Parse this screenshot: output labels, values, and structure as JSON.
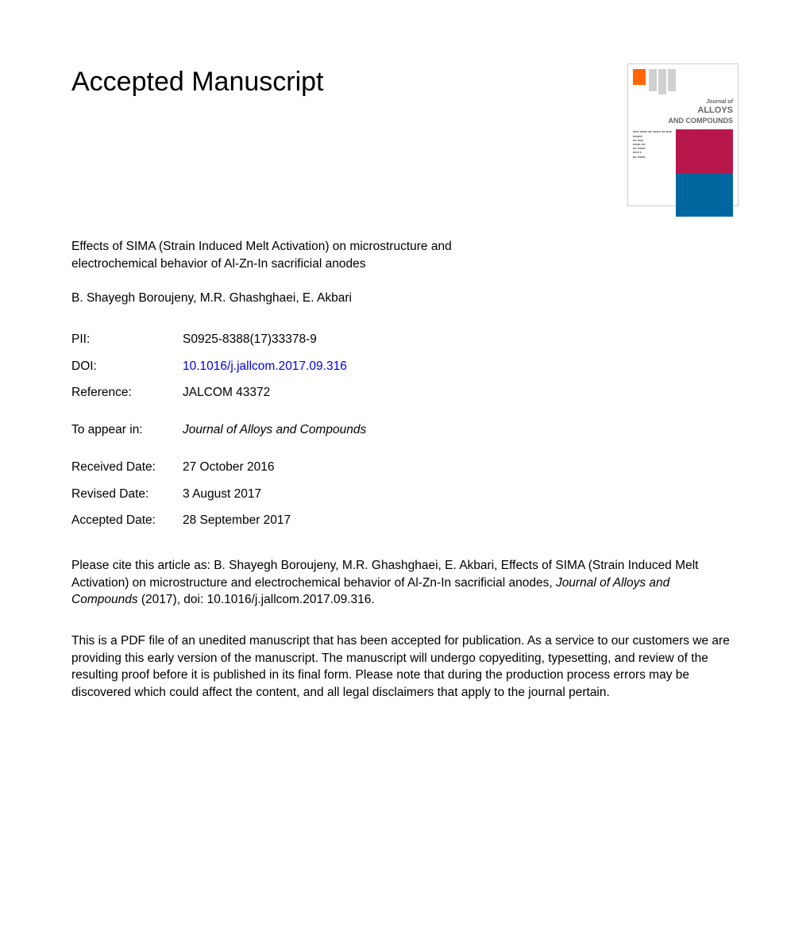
{
  "heading": "Accepted Manuscript",
  "journal_cover": {
    "title_line1": "Journal of",
    "title_line2": "ALLOYS",
    "title_line3": "AND COMPOUNDS",
    "colors": {
      "elsevier": "#ff6600",
      "bars": "#d0d0d0",
      "pink": "#b8174c",
      "blue": "#0066a0",
      "border": "#cccccc"
    }
  },
  "article": {
    "title": "Effects of SIMA (Strain Induced Melt Activation) on microstructure and electrochemical behavior of Al-Zn-In sacrificial anodes",
    "authors": "B. Shayegh Boroujeny, M.R. Ghashghaei, E. Akbari"
  },
  "metadata": {
    "pii_label": "PII:",
    "pii_value": "S0925-8388(17)33378-9",
    "doi_label": "DOI:",
    "doi_value": "10.1016/j.jallcom.2017.09.316",
    "reference_label": "Reference:",
    "reference_value": "JALCOM 43372",
    "to_appear_label": "To appear in:",
    "to_appear_value": "Journal of Alloys and Compounds",
    "received_label": "Received Date:",
    "received_value": "27 October 2016",
    "revised_label": "Revised Date:",
    "revised_value": "3 August 2017",
    "accepted_label": "Accepted Date:",
    "accepted_value": "28 September 2017"
  },
  "citation": {
    "prefix": "Please cite this article as: B. Shayegh Boroujeny, M.R. Ghashghaei, E. Akbari, Effects of SIMA (Strain Induced Melt Activation) on microstructure and electrochemical behavior of Al-Zn-In sacrificial anodes, ",
    "journal_italic": "Journal of Alloys and Compounds",
    "suffix": " (2017), doi: 10.1016/j.jallcom.2017.09.316."
  },
  "disclaimer": "This is a PDF file of an unedited manuscript that has been accepted for publication. As a service to our customers we are providing this early version of the manuscript. The manuscript will undergo copyediting, typesetting, and review of the resulting proof before it is published in its final form. Please note that during the production process errors may be discovered which could affect the content, and all legal disclaimers that apply to the journal pertain.",
  "colors": {
    "text": "#000000",
    "link": "#0000ee",
    "background": "#ffffff"
  },
  "typography": {
    "heading_fontsize": 34,
    "body_fontsize": 15.5,
    "font_family": "Arial, Helvetica, sans-serif"
  }
}
